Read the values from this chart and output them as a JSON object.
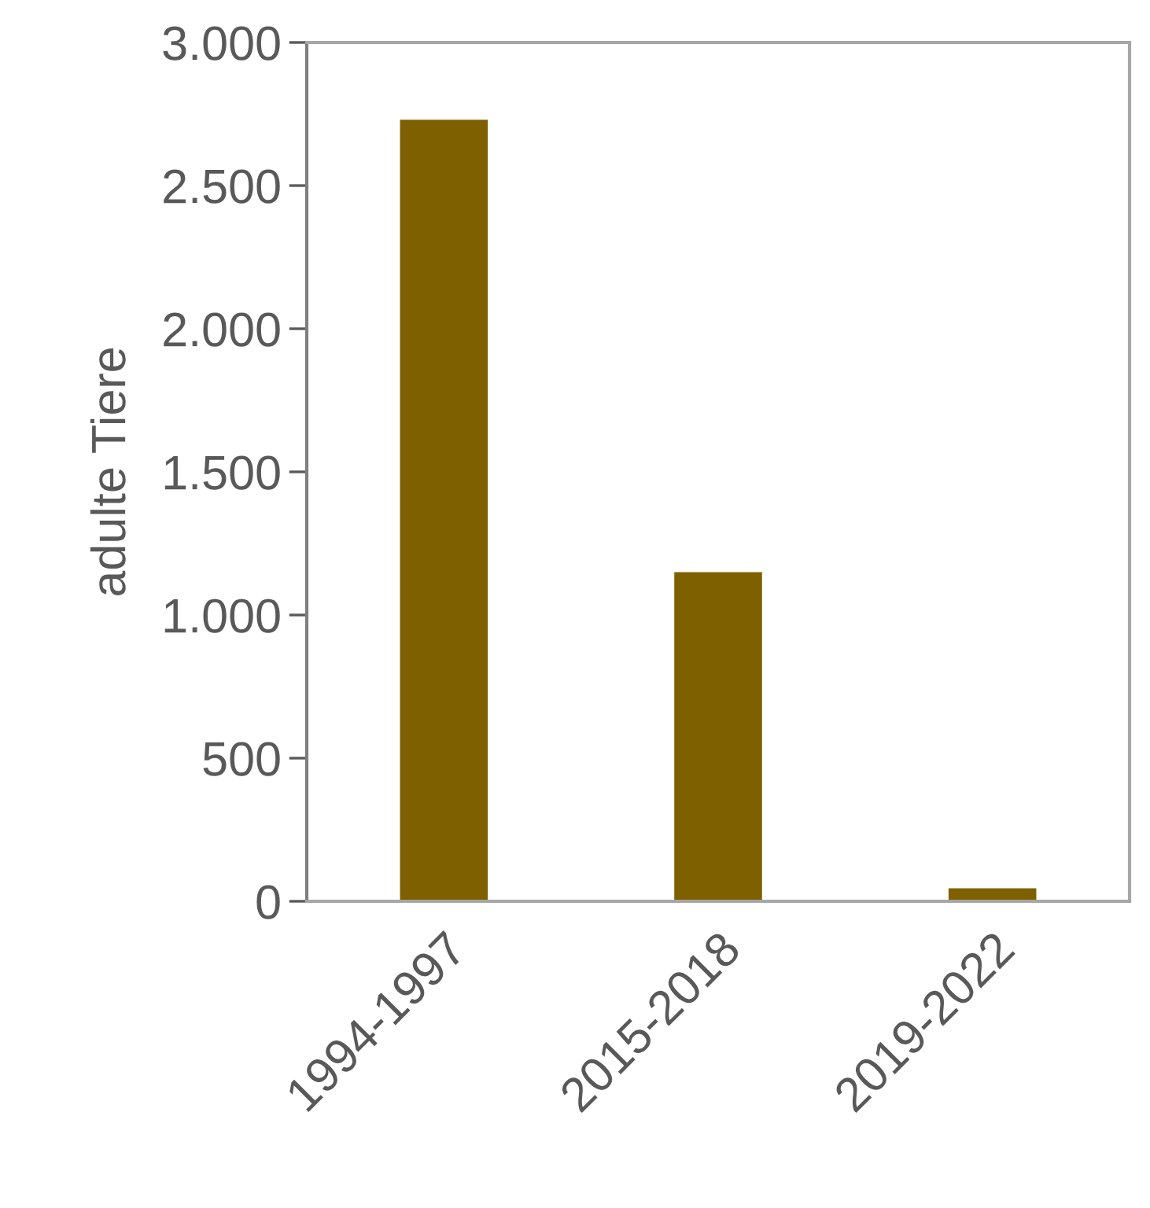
{
  "chart_data": {
    "type": "bar",
    "ylabel": "adulte Tiere",
    "categories": [
      "1994-1997",
      "2015-2018",
      "2019-2022"
    ],
    "values": [
      2730,
      1150,
      45
    ],
    "color": "#7f6000",
    "ylim": [
      0,
      3000
    ],
    "yticks": [
      {
        "value": 0,
        "label": "0"
      },
      {
        "value": 500,
        "label": "500"
      },
      {
        "value": 1000,
        "label": "1.000"
      },
      {
        "value": 1500,
        "label": "1.500"
      },
      {
        "value": 2000,
        "label": "2.000"
      },
      {
        "value": 2500,
        "label": "2.500"
      },
      {
        "value": 3000,
        "label": "3.000"
      }
    ],
    "grid": false
  }
}
